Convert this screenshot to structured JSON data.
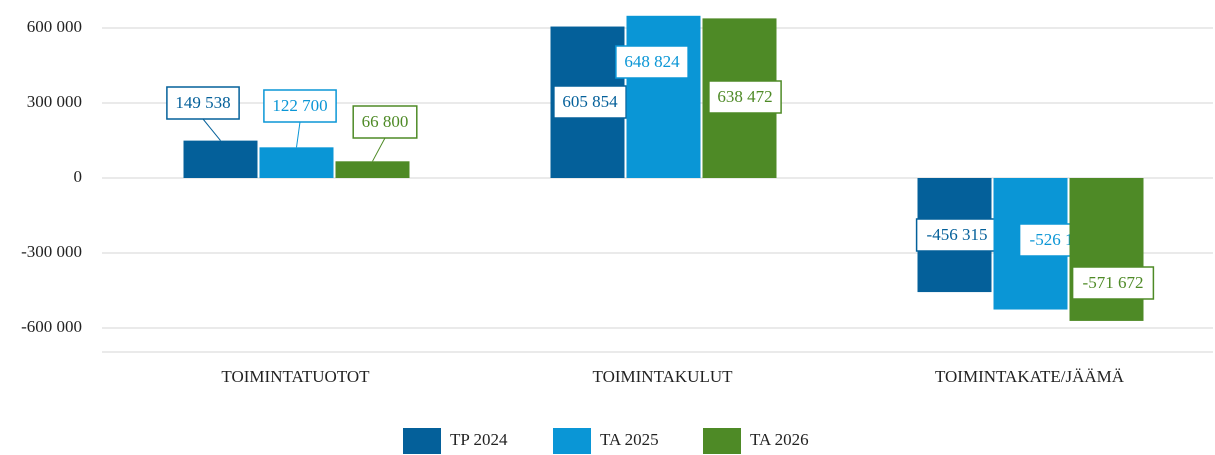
{
  "chart_data": {
    "type": "bar",
    "categories": [
      "TOIMINTATUOTOT",
      "TOIMINTAKULUT",
      "TOIMINTAKATE/JÄÄMÄ"
    ],
    "series": [
      {
        "name": "TP 2024",
        "color": "#04609a",
        "values": [
          149538,
          605854,
          -456315
        ],
        "value_labels": [
          "149 538",
          "605 854",
          "-456 315"
        ]
      },
      {
        "name": "TA 2025",
        "color": "#0a96d6",
        "values": [
          122700,
          648824,
          -526124
        ],
        "value_labels": [
          "122 700",
          "648 824",
          "-526 124"
        ]
      },
      {
        "name": "TA 2026",
        "color": "#4e8a26",
        "values": [
          66800,
          638472,
          -571672
        ],
        "value_labels": [
          "66 800",
          "638 472",
          "-571 672"
        ]
      }
    ],
    "ylim": [
      -700000,
      700000
    ],
    "yticks": [
      {
        "value": -600000,
        "label": "-600 000"
      },
      {
        "value": -300000,
        "label": "-300 000"
      },
      0,
      {
        "value": 300000,
        "label": "300 000"
      },
      {
        "value": 600000,
        "label": "600 000"
      }
    ],
    "grid": true,
    "legend": "bottom"
  }
}
